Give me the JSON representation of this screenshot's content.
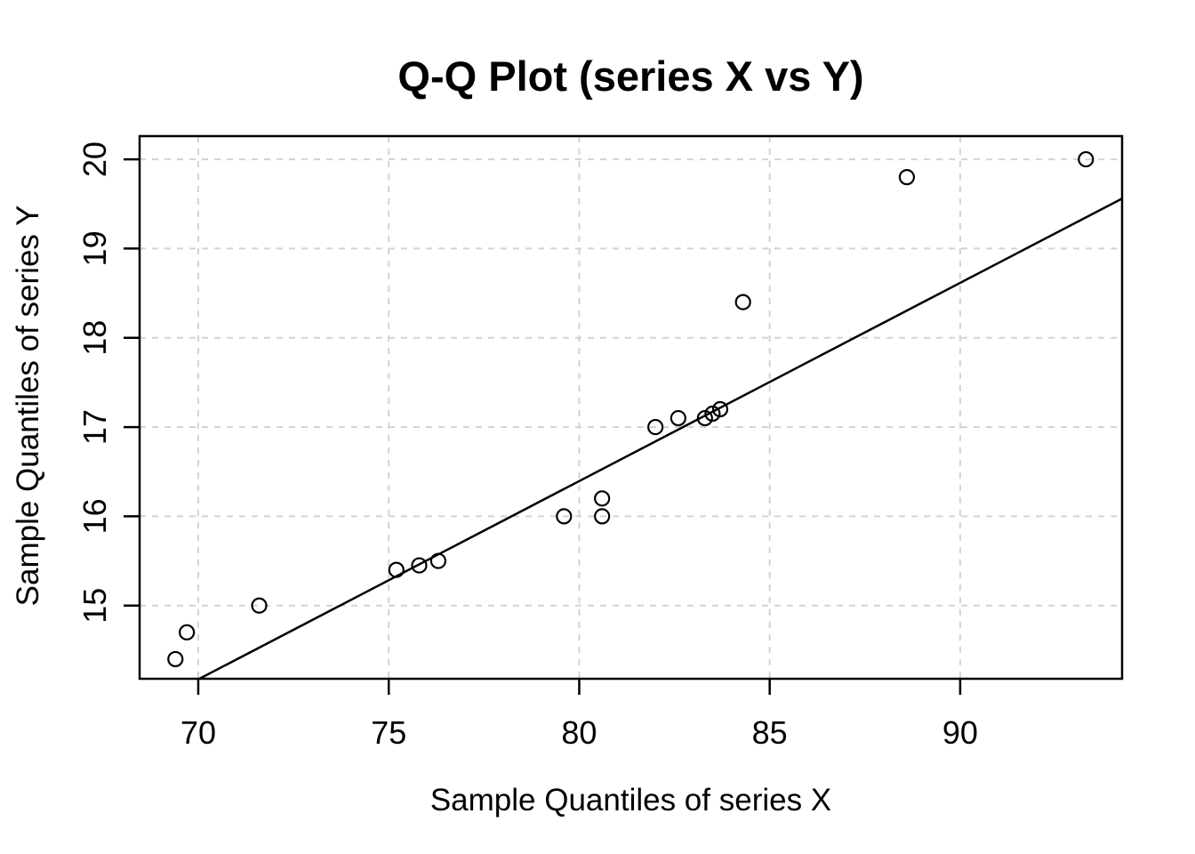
{
  "chart_data": {
    "type": "scatter",
    "title": "Q-Q Plot (series X vs Y)",
    "xlabel": "Sample Quantiles of series X",
    "ylabel": "Sample Quantiles of series Y",
    "xlim": [
      68.46,
      94.25
    ],
    "ylim": [
      14.18,
      20.26
    ],
    "x_ticks": [
      70,
      75,
      80,
      85,
      90
    ],
    "y_ticks": [
      15,
      16,
      17,
      18,
      19,
      20
    ],
    "grid": true,
    "grid_style": "dashed",
    "legend": "none",
    "points": [
      {
        "x": 69.4,
        "y": 14.4
      },
      {
        "x": 69.7,
        "y": 14.7
      },
      {
        "x": 71.6,
        "y": 15.0
      },
      {
        "x": 75.2,
        "y": 15.4
      },
      {
        "x": 75.8,
        "y": 15.45
      },
      {
        "x": 76.3,
        "y": 15.5
      },
      {
        "x": 79.6,
        "y": 16.0
      },
      {
        "x": 80.6,
        "y": 16.0
      },
      {
        "x": 80.6,
        "y": 16.2
      },
      {
        "x": 82.0,
        "y": 17.0
      },
      {
        "x": 82.6,
        "y": 17.1
      },
      {
        "x": 83.3,
        "y": 17.1
      },
      {
        "x": 83.5,
        "y": 17.15
      },
      {
        "x": 83.7,
        "y": 17.2
      },
      {
        "x": 84.3,
        "y": 18.4
      },
      {
        "x": 88.6,
        "y": 19.8
      },
      {
        "x": 93.3,
        "y": 20.0
      }
    ],
    "ref_line": {
      "x1": 70.03,
      "y1": 14.18,
      "x2": 94.25,
      "y2": 19.56
    },
    "colors": {
      "foreground": "#000000",
      "grid": "#d3d3d3",
      "background": "#ffffff"
    },
    "marker": "open-circle"
  }
}
